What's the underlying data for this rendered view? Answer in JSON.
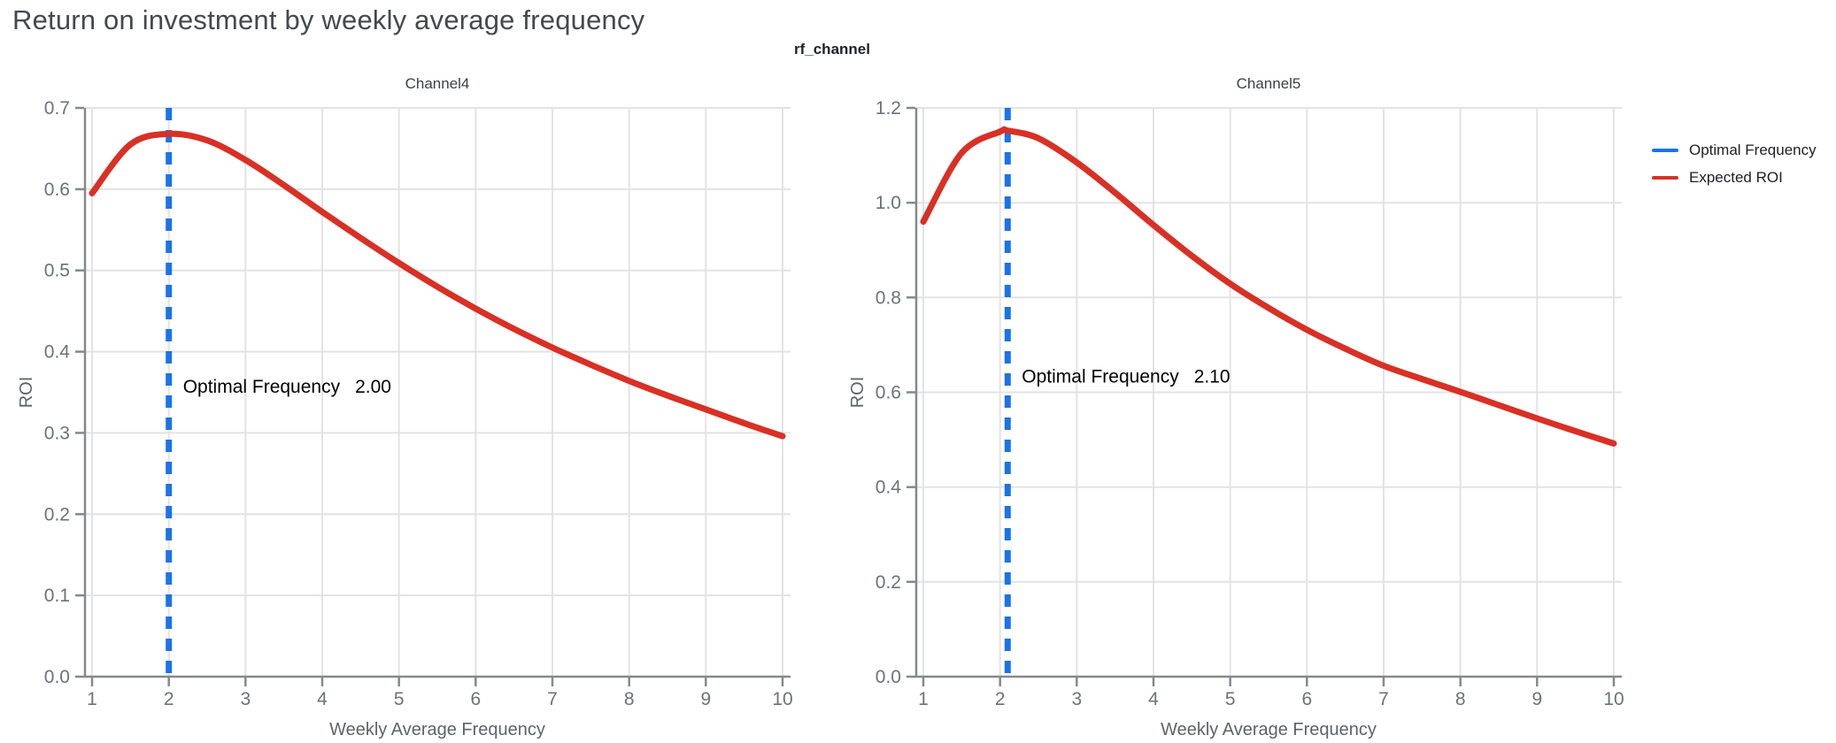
{
  "page": {
    "title": "Return on investment by weekly average frequency",
    "facet_title": "rf_channel"
  },
  "legend": {
    "items": [
      {
        "label": "Optimal Frequency",
        "color": "#1a73e8"
      },
      {
        "label": "Expected ROI",
        "color": "#d93025"
      }
    ]
  },
  "colors": {
    "title_text": "#45494d",
    "facet_title_text": "#1f2123",
    "subplot_title_text": "#3c4043",
    "tick_label_text": "#6e7276",
    "axis_title_text": "#5f6368",
    "annotation_text": "#000000",
    "gridline": "#e3e3e3",
    "axis_line": "#85898d",
    "optimal_frequency_line": "#1a73e8",
    "roi_curve": "#d93025"
  },
  "chart_data": [
    {
      "type": "line",
      "title": "Channel4",
      "xlabel": "Weekly Average Frequency",
      "ylabel": "ROI",
      "xlim": [
        1,
        10
      ],
      "ylim": [
        0.0,
        0.7
      ],
      "grid": true,
      "xticks": [
        1,
        2,
        3,
        4,
        5,
        6,
        7,
        8,
        9,
        10
      ],
      "xtick_labels": [
        "1",
        "2",
        "3",
        "4",
        "5",
        "6",
        "7",
        "8",
        "9",
        "10"
      ],
      "yticks": [
        0.0,
        0.1,
        0.2,
        0.3,
        0.4,
        0.5,
        0.6,
        0.7
      ],
      "ytick_labels": [
        "0.0",
        "0.1",
        "0.2",
        "0.3",
        "0.4",
        "0.5",
        "0.6",
        "0.7"
      ],
      "series": [
        {
          "name": "Expected ROI",
          "x": [
            1.0,
            1.5,
            2.0,
            2.5,
            3.0,
            3.5,
            4.0,
            4.5,
            5.0,
            5.5,
            6.0,
            6.5,
            7.0,
            7.5,
            8.0,
            8.5,
            9.0,
            9.5,
            10.0
          ],
          "y": [
            0.595,
            0.655,
            0.668,
            0.66,
            0.636,
            0.605,
            0.572,
            0.54,
            0.509,
            0.48,
            0.453,
            0.428,
            0.405,
            0.384,
            0.364,
            0.346,
            0.329,
            0.312,
            0.296
          ]
        }
      ],
      "optimal_frequency": {
        "x": 2.0,
        "annotation_label": "Optimal Frequency",
        "annotation_value": "2.00",
        "annotation_y": 0.358
      }
    },
    {
      "type": "line",
      "title": "Channel5",
      "xlabel": "Weekly Average Frequency",
      "ylabel": "ROI",
      "xlim": [
        1,
        10
      ],
      "ylim": [
        0.0,
        1.2
      ],
      "grid": true,
      "xticks": [
        1,
        2,
        3,
        4,
        5,
        6,
        7,
        8,
        9,
        10
      ],
      "xtick_labels": [
        "1",
        "2",
        "3",
        "4",
        "5",
        "6",
        "7",
        "8",
        "9",
        "10"
      ],
      "yticks": [
        0.0,
        0.2,
        0.4,
        0.6,
        0.8,
        1.0,
        1.2
      ],
      "ytick_labels": [
        "0.0",
        "0.2",
        "0.4",
        "0.6",
        "0.8",
        "1.0",
        "1.2"
      ],
      "series": [
        {
          "name": "Expected ROI",
          "x": [
            1.0,
            1.5,
            2.0,
            2.1,
            2.5,
            3.0,
            3.5,
            4.0,
            4.5,
            5.0,
            5.5,
            6.0,
            6.5,
            7.0,
            7.5,
            8.0,
            8.5,
            9.0,
            9.5,
            10.0
          ],
          "y": [
            0.96,
            1.105,
            1.15,
            1.152,
            1.136,
            1.085,
            1.021,
            0.953,
            0.888,
            0.829,
            0.778,
            0.732,
            0.692,
            0.656,
            0.628,
            0.601,
            0.573,
            0.545,
            0.518,
            0.492
          ]
        }
      ],
      "optimal_frequency": {
        "x": 2.1,
        "annotation_label": "Optimal Frequency",
        "annotation_value": "2.10",
        "annotation_y": 0.635
      }
    }
  ]
}
